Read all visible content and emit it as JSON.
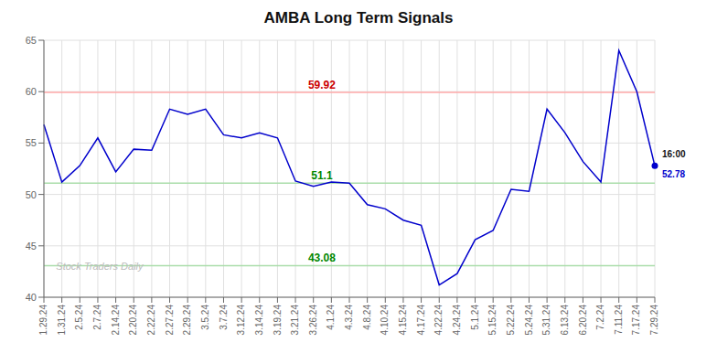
{
  "chart_data": {
    "type": "line",
    "title": "AMBA Long Term Signals",
    "categories": [
      "1.29.24",
      "1.31.24",
      "2.5.24",
      "2.7.24",
      "2.14.24",
      "2.20.24",
      "2.22.24",
      "2.27.24",
      "2.29.24",
      "3.5.24",
      "3.7.24",
      "3.12.24",
      "3.14.24",
      "3.19.24",
      "3.21.24",
      "3.26.24",
      "4.1.24",
      "4.3.24",
      "4.8.24",
      "4.10.24",
      "4.15.24",
      "4.17.24",
      "4.22.24",
      "4.24.24",
      "5.1.24",
      "5.15.24",
      "5.22.24",
      "5.24.24",
      "5.31.24",
      "6.13.24",
      "6.20.24",
      "7.2.24",
      "7.11.24",
      "7.17.24",
      "7.29.24"
    ],
    "values": [
      56.8,
      51.2,
      52.8,
      55.5,
      52.2,
      54.4,
      54.3,
      58.3,
      57.8,
      58.3,
      55.8,
      55.5,
      56.0,
      55.5,
      51.3,
      50.8,
      51.2,
      51.1,
      49.0,
      48.6,
      47.5,
      47.0,
      41.2,
      42.3,
      45.6,
      46.5,
      50.5,
      50.3,
      58.3,
      56.0,
      53.2,
      51.2,
      64.0,
      60.0,
      52.78
    ],
    "color": "#0000cc",
    "ylim": [
      40,
      65
    ],
    "yticks": [
      40,
      45,
      50,
      55,
      60,
      65
    ],
    "grid": true,
    "hlines": [
      {
        "value": 59.92,
        "label": "59.92",
        "color": "#ffaaaa",
        "label_color": "#cc0000"
      },
      {
        "value": 51.1,
        "label": "51.1",
        "color": "#aaddaa",
        "label_color": "#008800"
      },
      {
        "value": 43.08,
        "label": "43.08",
        "color": "#aaddaa",
        "label_color": "#008800"
      }
    ],
    "annotations": [
      {
        "text": "16:00",
        "color": "#111111"
      },
      {
        "text": "52.78",
        "color": "#0000cc"
      }
    ],
    "watermark": "Stock Traders Daily"
  }
}
